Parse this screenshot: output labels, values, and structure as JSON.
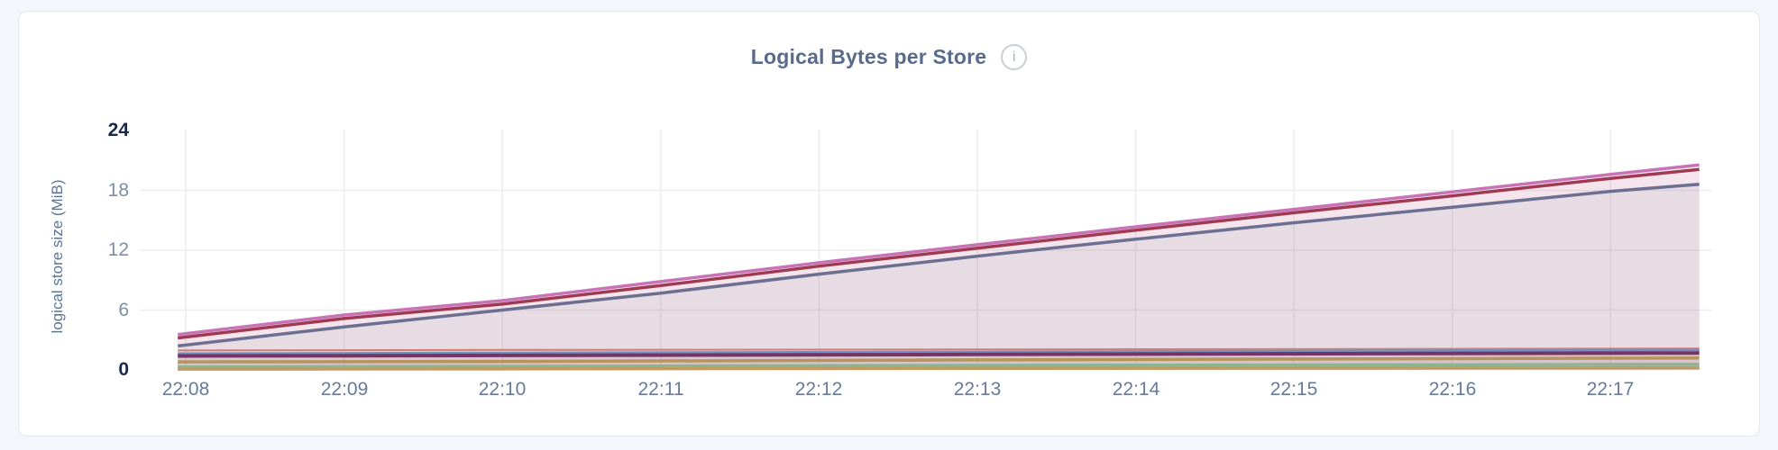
{
  "page": {
    "background": "#f4f6fb"
  },
  "card": {
    "background": "#ffffff",
    "border_color": "#e4e7ed"
  },
  "header": {
    "title": "Logical Bytes per Store",
    "info_icon_glyph": "i"
  },
  "chart_data": {
    "type": "area",
    "title": "Logical Bytes per Store",
    "xlabel": "",
    "ylabel": "logical store size (MiB)",
    "ylim": [
      0,
      24
    ],
    "y_ticks": [
      24,
      18,
      12,
      6,
      0
    ],
    "y_ticks_emphasized": [
      24,
      0
    ],
    "x_tick_labels": [
      "22:08",
      "22:09",
      "22:10",
      "22:11",
      "22:12",
      "22:13",
      "22:14",
      "22:15",
      "22:16",
      "22:17"
    ],
    "grid": true,
    "legend_position": "none",
    "gridline_color": "#ededed",
    "x_domain_minutes_from_22_08": [
      -0.05,
      9.56
    ],
    "series": [
      {
        "id": "store-1",
        "color": "#c973b7",
        "width": 3.5,
        "fill_opacity": 0.08,
        "points": [
          [
            -0.05,
            3.55
          ],
          [
            1,
            5.5
          ],
          [
            2,
            6.95
          ],
          [
            3,
            8.85
          ],
          [
            4,
            10.75
          ],
          [
            5,
            12.55
          ],
          [
            6,
            14.35
          ],
          [
            7,
            16.1
          ],
          [
            8,
            17.85
          ],
          [
            9,
            19.6
          ],
          [
            9.56,
            20.55
          ]
        ]
      },
      {
        "id": "store-2",
        "color": "#a03a53",
        "width": 3.5,
        "fill_opacity": 0.08,
        "points": [
          [
            -0.05,
            3.2
          ],
          [
            1,
            5.15
          ],
          [
            2,
            6.6
          ],
          [
            3,
            8.45
          ],
          [
            4,
            10.4
          ],
          [
            5,
            12.2
          ],
          [
            6,
            14.0
          ],
          [
            7,
            15.75
          ],
          [
            8,
            17.45
          ],
          [
            9,
            19.2
          ],
          [
            9.56,
            20.1
          ]
        ]
      },
      {
        "id": "store-3",
        "color": "#6c6f91",
        "width": 3.5,
        "fill_opacity": 0.08,
        "points": [
          [
            -0.05,
            2.4
          ],
          [
            1,
            4.3
          ],
          [
            2,
            6.0
          ],
          [
            3,
            7.7
          ],
          [
            4,
            9.6
          ],
          [
            5,
            11.4
          ],
          [
            6,
            13.1
          ],
          [
            7,
            14.75
          ],
          [
            8,
            16.3
          ],
          [
            9,
            17.9
          ],
          [
            9.56,
            18.6
          ]
        ]
      },
      {
        "id": "store-4",
        "color": "#d17d74",
        "width": 2,
        "fill_opacity": 0.06,
        "points": [
          [
            -0.05,
            1.95
          ],
          [
            2,
            2.0
          ],
          [
            5,
            2.05
          ],
          [
            9.56,
            2.15
          ]
        ]
      },
      {
        "id": "store-5",
        "color": "#7590c0",
        "width": 3,
        "fill_opacity": 0.06,
        "points": [
          [
            -0.05,
            1.62
          ],
          [
            2,
            1.7
          ],
          [
            5,
            1.8
          ],
          [
            9.56,
            2.0
          ]
        ]
      },
      {
        "id": "store-6",
        "color": "#753463",
        "width": 4,
        "fill_opacity": 0.06,
        "points": [
          [
            -0.05,
            1.4
          ],
          [
            2,
            1.45
          ],
          [
            5,
            1.55
          ],
          [
            9.56,
            1.7
          ]
        ]
      },
      {
        "id": "store-7",
        "color": "#b99459",
        "width": 3.5,
        "fill_opacity": 0.06,
        "points": [
          [
            -0.05,
            0.8
          ],
          [
            2,
            0.85
          ],
          [
            5,
            1.0
          ],
          [
            9.56,
            1.2
          ]
        ]
      },
      {
        "id": "store-8",
        "color": "#8bb591",
        "width": 3.5,
        "fill_opacity": 0.06,
        "points": [
          [
            -0.05,
            0.3
          ],
          [
            2,
            0.35
          ],
          [
            5,
            0.45
          ],
          [
            9.56,
            0.55
          ]
        ]
      },
      {
        "id": "store-9",
        "color": "#c29b60",
        "width": 3.5,
        "fill_opacity": 0.06,
        "points": [
          [
            -0.05,
            0.08
          ],
          [
            2,
            0.1
          ],
          [
            5,
            0.15
          ],
          [
            9.56,
            0.22
          ]
        ]
      }
    ]
  }
}
